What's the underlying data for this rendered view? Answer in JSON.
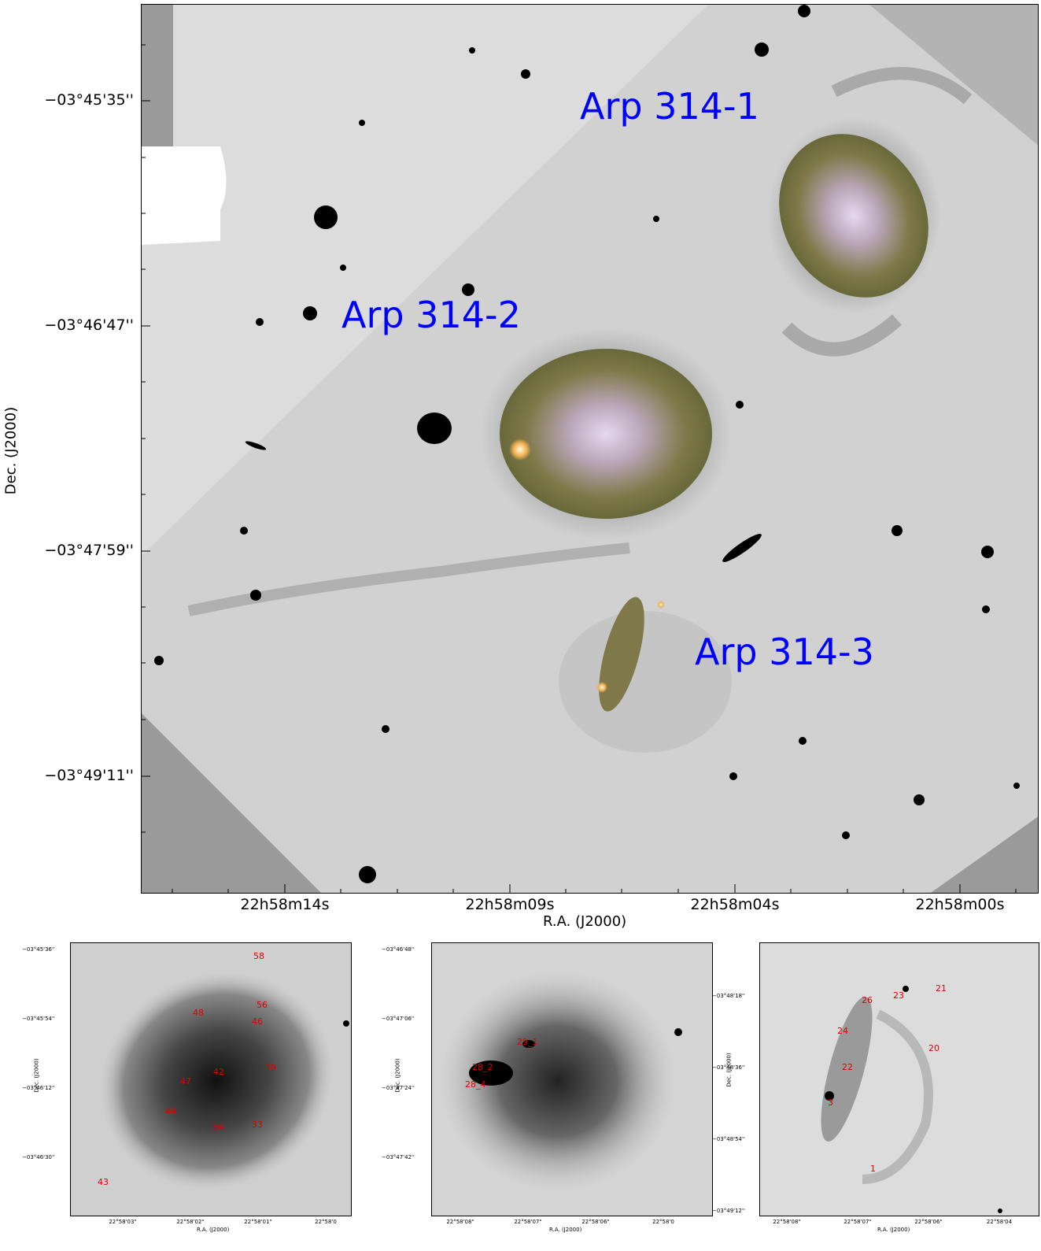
{
  "main": {
    "dec_ticks": [
      "−03°45'35''",
      "−03°46'47''",
      "−03°47'59''",
      "−03°49'11''"
    ],
    "ra_ticks": [
      "22h58m14s",
      "22h58m09s",
      "22h58m04s",
      "22h58m00s"
    ],
    "xlabel": "R.A. (J2000)",
    "ylabel": "Dec. (J2000)",
    "labels": {
      "g1": "Arp 314-1",
      "g2": "Arp 314-2",
      "g3": "Arp 314-3"
    },
    "colors": {
      "label": "#0000ff",
      "source": "#e00000"
    }
  },
  "panel1": {
    "dec_ticks": [
      "−03°45'36''",
      "−03°45'54''",
      "−03°46'12''",
      "−03°46'30''"
    ],
    "ra_ticks": [
      "22°58'03\"",
      "22°58'02\"",
      "22°58'01\"",
      "22°58'0"
    ],
    "xlabel": "R.A. (J2000)",
    "ylabel": "Dec. (J2000)",
    "sources": [
      "58",
      "56",
      "48",
      "46",
      "42",
      "39",
      "47",
      "44",
      "34",
      "33",
      "43"
    ]
  },
  "panel2": {
    "dec_ticks": [
      "−03°46'48''",
      "−03°47'06''",
      "−03°47'24''",
      "−03°47'42''"
    ],
    "ra_ticks": [
      "22°58'08\"",
      "22°58'07\"",
      "22°58'06\"",
      "22°58'0"
    ],
    "xlabel": "R.A. (J2000)",
    "ylabel": "Dec. (J2000)",
    "sources": [
      "29_1",
      "28_2",
      "28_4"
    ]
  },
  "panel3": {
    "dec_ticks": [
      "−03°48'18''",
      "−03°48'36''",
      "−03°48'54''",
      "−03°49'12''"
    ],
    "ra_ticks": [
      "22°58'08\"",
      "22°58'07\"",
      "22°58'06\"",
      "22°58'04"
    ],
    "xlabel": "R.A. (J2000)",
    "ylabel": "Dec. (J2000)",
    "sources": [
      "21",
      "26",
      "23",
      "24",
      "20",
      "22",
      "3",
      "1"
    ]
  }
}
